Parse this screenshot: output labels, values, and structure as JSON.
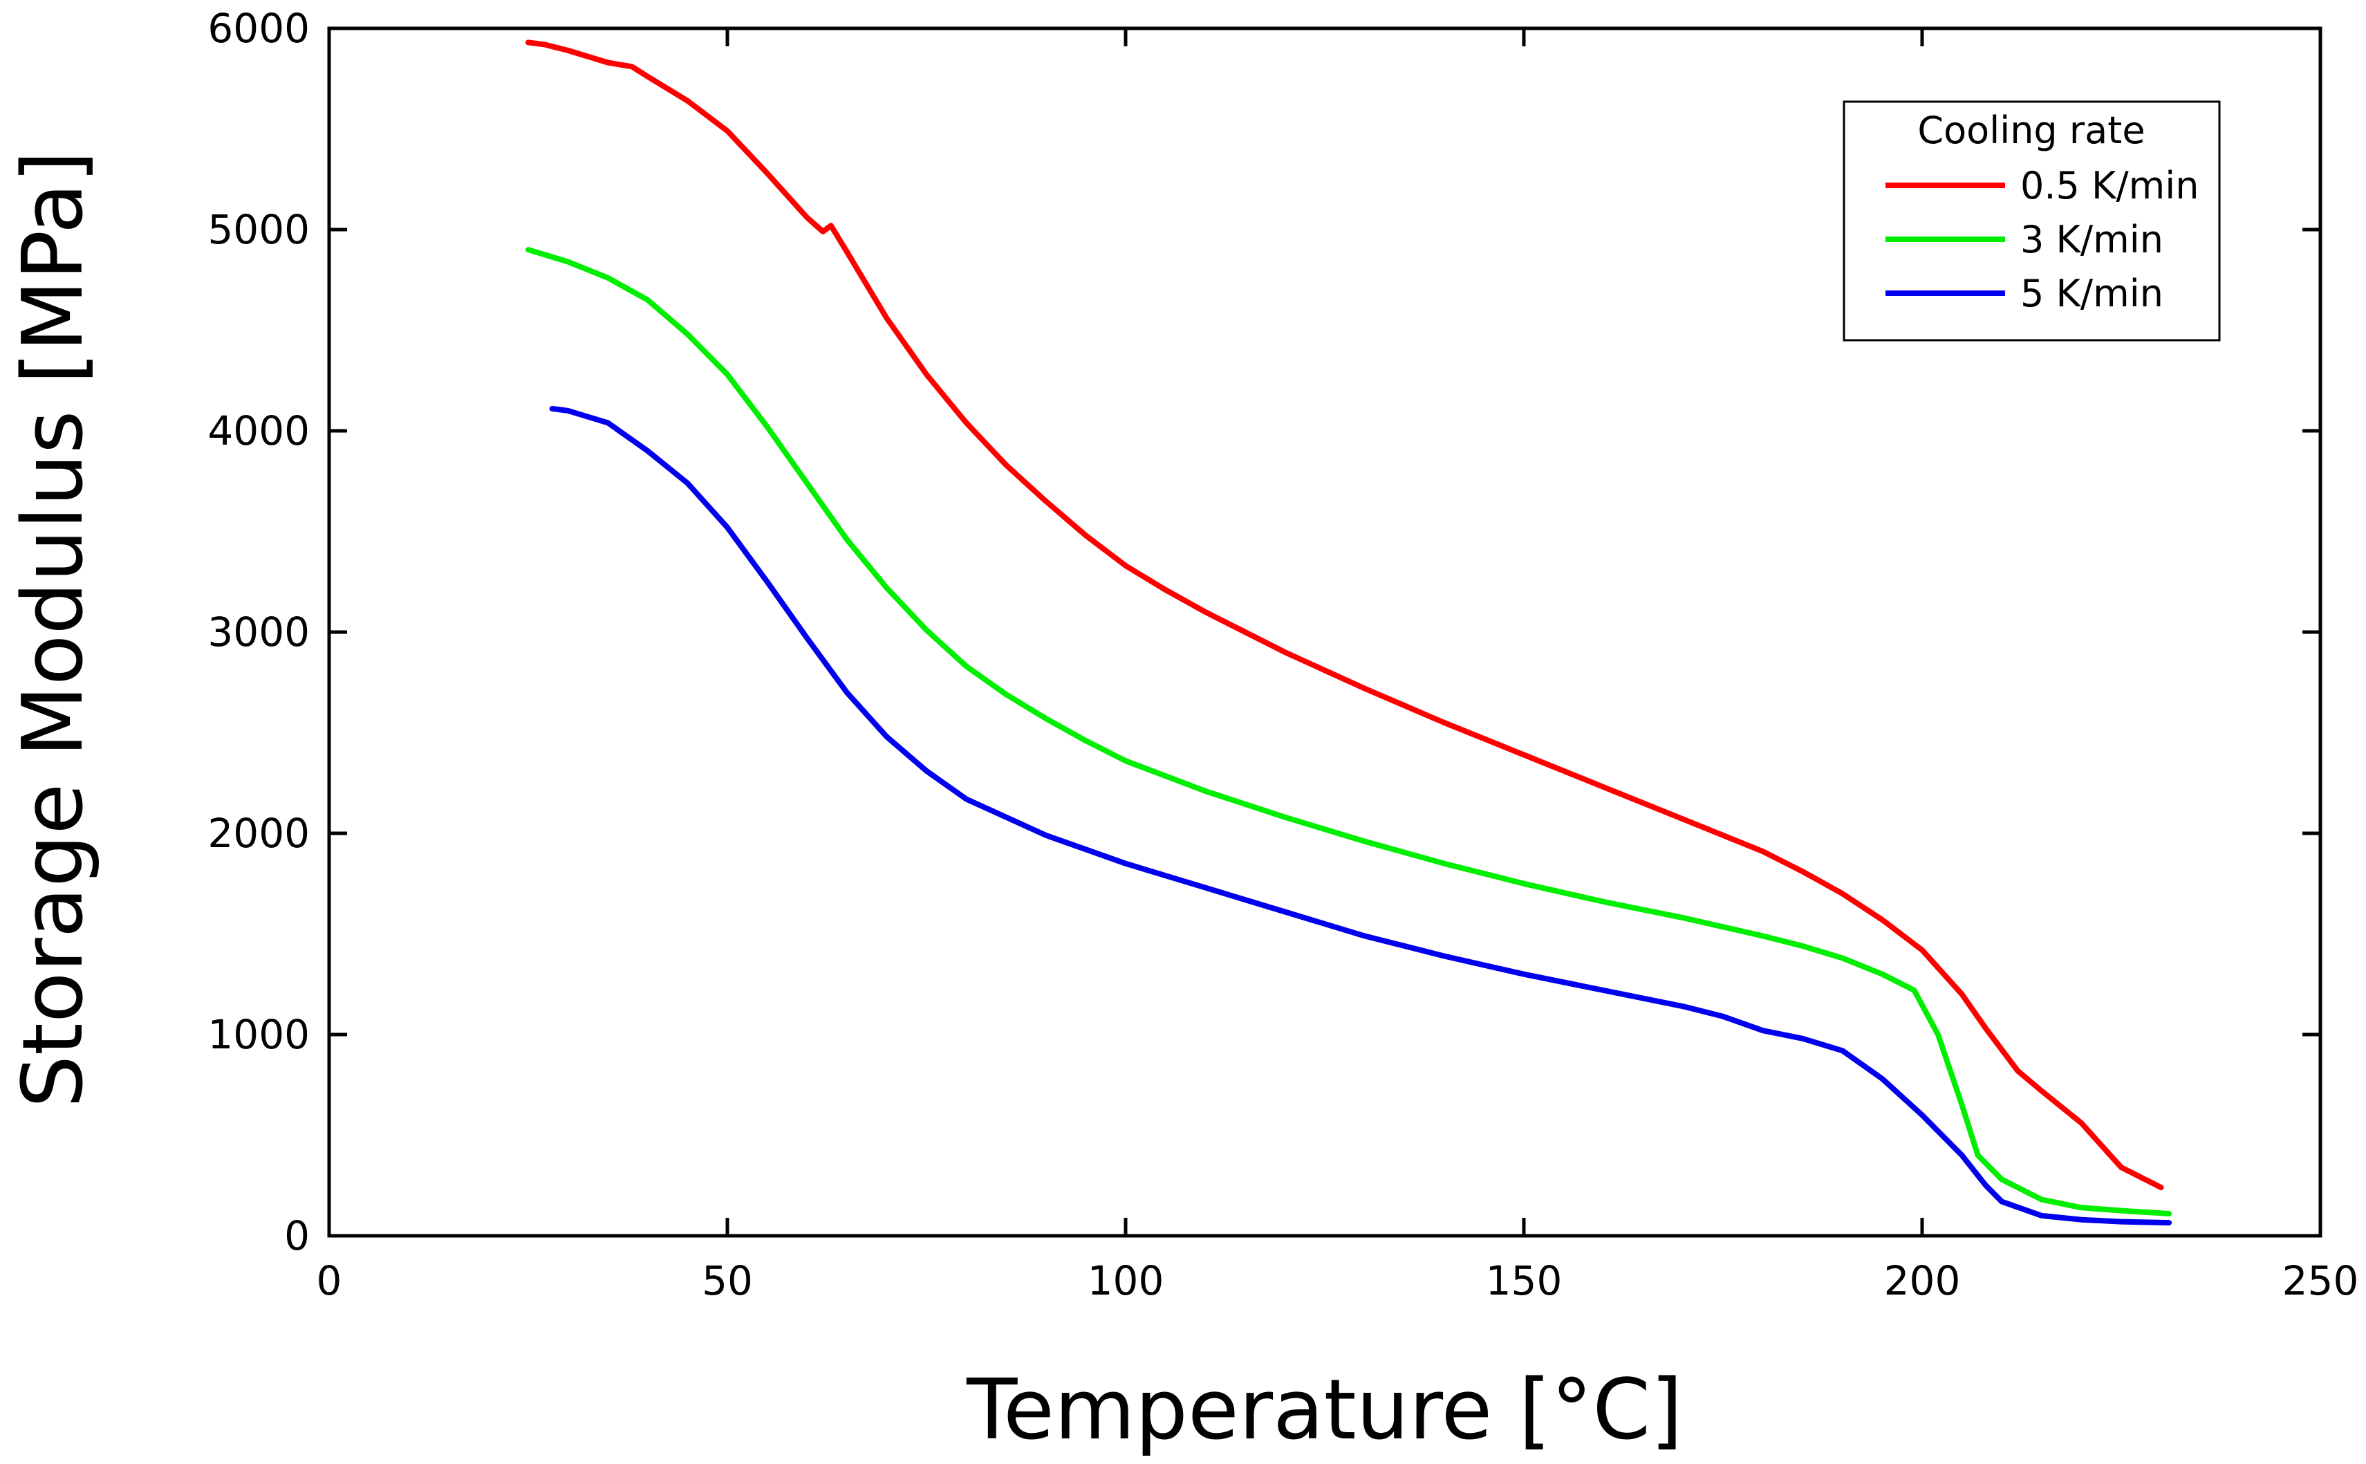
{
  "chart_data": {
    "type": "line",
    "title": "",
    "xlabel": "Temperature [°C]",
    "ylabel": "Storage Modulus [MPa]",
    "xlim": [
      0,
      250
    ],
    "ylim": [
      0,
      6000
    ],
    "xticks": [
      0,
      50,
      100,
      150,
      200,
      250
    ],
    "yticks": [
      0,
      1000,
      2000,
      3000,
      4000,
      5000,
      6000
    ],
    "xtick_labels": [
      "0",
      "50",
      "100",
      "150",
      "200",
      "250"
    ],
    "ytick_labels": [
      "0",
      "1000",
      "2000",
      "3000",
      "4000",
      "5000",
      "6000"
    ],
    "grid": false,
    "legend": {
      "title": "Cooling rate",
      "placement": "top-right"
    },
    "series": [
      {
        "name": "0.5 K/min",
        "color": "#ff0000",
        "x": [
          25,
          27,
          30,
          35,
          38,
          40,
          45,
          50,
          55,
          60,
          62,
          63,
          65,
          70,
          75,
          80,
          85,
          90,
          95,
          100,
          105,
          110,
          115,
          120,
          130,
          140,
          150,
          160,
          170,
          180,
          185,
          190,
          195,
          200,
          205,
          208,
          212,
          215,
          220,
          225,
          230
        ],
        "y": [
          5930,
          5920,
          5890,
          5830,
          5810,
          5760,
          5640,
          5490,
          5280,
          5060,
          4990,
          5020,
          4890,
          4560,
          4280,
          4040,
          3830,
          3650,
          3480,
          3330,
          3210,
          3100,
          3000,
          2900,
          2720,
          2550,
          2390,
          2230,
          2070,
          1910,
          1810,
          1700,
          1570,
          1420,
          1200,
          1030,
          820,
          720,
          560,
          340,
          240
        ]
      },
      {
        "name": "3 K/min",
        "color": "#00ee00",
        "x": [
          25,
          30,
          35,
          40,
          45,
          50,
          55,
          60,
          65,
          70,
          75,
          80,
          85,
          90,
          95,
          100,
          110,
          120,
          130,
          140,
          150,
          160,
          170,
          180,
          185,
          190,
          195,
          199,
          202,
          205,
          207,
          210,
          215,
          220,
          225,
          231
        ],
        "y": [
          4900,
          4840,
          4760,
          4650,
          4480,
          4280,
          4020,
          3740,
          3460,
          3220,
          3010,
          2830,
          2690,
          2570,
          2460,
          2360,
          2210,
          2080,
          1960,
          1850,
          1750,
          1660,
          1580,
          1490,
          1440,
          1380,
          1300,
          1220,
          1000,
          650,
          400,
          280,
          180,
          140,
          125,
          110
        ]
      },
      {
        "name": "5 K/min",
        "color": "#0000ee",
        "x": [
          28,
          30,
          35,
          40,
          45,
          50,
          55,
          60,
          65,
          70,
          75,
          80,
          90,
          100,
          110,
          120,
          130,
          140,
          150,
          160,
          170,
          175,
          180,
          185,
          190,
          195,
          200,
          205,
          208,
          210,
          215,
          220,
          225,
          231
        ],
        "y": [
          4110,
          4100,
          4040,
          3900,
          3740,
          3520,
          3250,
          2970,
          2700,
          2480,
          2310,
          2170,
          1990,
          1850,
          1730,
          1610,
          1490,
          1390,
          1300,
          1220,
          1140,
          1090,
          1020,
          980,
          920,
          780,
          600,
          400,
          250,
          170,
          100,
          80,
          70,
          65
        ]
      }
    ]
  }
}
